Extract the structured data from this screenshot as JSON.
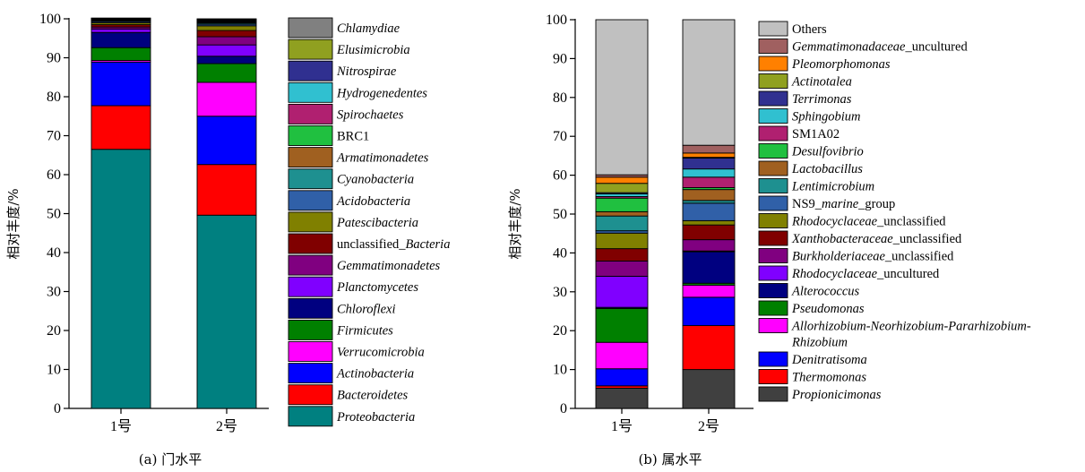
{
  "chart_data": [
    {
      "type": "bar",
      "stacked": true,
      "caption": "(a) 门水平",
      "ylabel": "相对丰度/%",
      "ylim": [
        0,
        100
      ],
      "yticks": [
        0,
        10,
        20,
        30,
        40,
        50,
        60,
        70,
        80,
        90,
        100
      ],
      "categories": [
        "1号",
        "2号"
      ],
      "legend_position": "right",
      "series": [
        {
          "name": "Proteobacteria",
          "color": "#008080",
          "values": [
            66.5,
            49.6
          ]
        },
        {
          "name": "Bacteroidetes",
          "color": "#FF0000",
          "values": [
            11.2,
            13.0
          ]
        },
        {
          "name": "Actinobacteria",
          "color": "#0000FF",
          "values": [
            11.2,
            12.4
          ]
        },
        {
          "name": "Verrucomicrobia",
          "color": "#FF00FF",
          "values": [
            0.4,
            8.7
          ]
        },
        {
          "name": "Firmicutes",
          "color": "#008000",
          "values": [
            3.3,
            4.8
          ]
        },
        {
          "name": "Chloroflexi",
          "color": "#000080",
          "values": [
            3.9,
            1.9
          ]
        },
        {
          "name": "Planctomycetes",
          "color": "#8000FF",
          "values": [
            0.9,
            2.9
          ]
        },
        {
          "name": "Gemmatimonadetes",
          "color": "#800080",
          "values": [
            0.5,
            2.1
          ]
        },
        {
          "name": "unclassified_Bacteria",
          "color": "#800000",
          "values": [
            0.6,
            1.6
          ]
        },
        {
          "name": "Patescibacteria",
          "color": "#808000",
          "values": [
            0.5,
            1.2
          ]
        },
        {
          "name": "Acidobacteria",
          "color": "#3060A8",
          "values": [
            0.3,
            0.4
          ]
        },
        {
          "name": "Cyanobacteria",
          "color": "#1E9090",
          "values": [
            0.2,
            0.3
          ]
        },
        {
          "name": "Armatimonadetes",
          "color": "#A06020",
          "values": [
            0.2,
            0.2
          ]
        },
        {
          "name": "BRC1",
          "color": "#20C040",
          "values": [
            0.2,
            0.2
          ]
        },
        {
          "name": "Spirochaetes",
          "color": "#B02070",
          "values": [
            0.1,
            0.2
          ]
        },
        {
          "name": "Hydrogenedentes",
          "color": "#30C0D0",
          "values": [
            0.1,
            0.1
          ]
        },
        {
          "name": "Nitrospirae",
          "color": "#303090",
          "values": [
            0.1,
            0.2
          ]
        },
        {
          "name": "Elusimicrobia",
          "color": "#90A020",
          "values": [
            0.0,
            0.1
          ]
        },
        {
          "name": "Chlamydiae",
          "color": "#808080",
          "values": [
            0.0,
            0.1
          ]
        }
      ],
      "legend": [
        {
          "text": "Chlamydiae",
          "italic": true
        },
        {
          "text": "Elusimicrobia",
          "italic": true
        },
        {
          "text": "Nitrospirae",
          "italic": true
        },
        {
          "text": "Hydrogenedentes",
          "italic": true
        },
        {
          "text": "Spirochaetes",
          "italic": true
        },
        {
          "text": "BRC1",
          "italic": false
        },
        {
          "text": "Armatimonadetes",
          "italic": true
        },
        {
          "text": "Cyanobacteria",
          "italic": true
        },
        {
          "text": "Acidobacteria",
          "italic": true
        },
        {
          "text": "Patescibacteria",
          "italic": true
        },
        {
          "text": "unclassified_Bacteria",
          "italic": false,
          "parts": [
            {
              "t": "unclassified_",
              "i": false
            },
            {
              "t": "Bacteria",
              "i": true
            }
          ]
        },
        {
          "text": "Gemmatimonadetes",
          "italic": true
        },
        {
          "text": "Planctomycetes",
          "italic": true
        },
        {
          "text": "Chloroflexi",
          "italic": true
        },
        {
          "text": "Firmicutes",
          "italic": true
        },
        {
          "text": "Verrucomicrobia",
          "italic": true
        },
        {
          "text": "Actinobacteria",
          "italic": true
        },
        {
          "text": "Bacteroidetes",
          "italic": true
        },
        {
          "text": "Proteobacteria",
          "italic": true
        }
      ]
    },
    {
      "type": "bar",
      "stacked": true,
      "caption": "(b) 属水平",
      "ylabel": "相对丰度/%",
      "ylim": [
        0,
        100
      ],
      "yticks": [
        0,
        10,
        20,
        30,
        40,
        50,
        60,
        70,
        80,
        90,
        100
      ],
      "categories": [
        "1号",
        "2号"
      ],
      "legend_position": "right",
      "series": [
        {
          "name": "Propionicimonas",
          "color": "#404040",
          "values": [
            5.2,
            10.0
          ]
        },
        {
          "name": "Thermomonas",
          "color": "#FF0000",
          "values": [
            0.6,
            11.3
          ]
        },
        {
          "name": "Denitratisoma",
          "color": "#0000FF",
          "values": [
            4.4,
            7.3
          ]
        },
        {
          "name": "Allorhizobium-Neorhizobium-Pararhizobium-Rhizobium",
          "color": "#FF00FF",
          "values": [
            6.8,
            3.1
          ]
        },
        {
          "name": "Pseudomonas",
          "color": "#008000",
          "values": [
            8.7,
            0.5
          ]
        },
        {
          "name": "Alterococcus",
          "color": "#000080",
          "values": [
            0.3,
            8.1
          ]
        },
        {
          "name": "Rhodocyclaceae_uncultured",
          "color": "#8000FF",
          "values": [
            8.0,
            0.2
          ]
        },
        {
          "name": "Burkholderiaceae_unclassified",
          "color": "#800080",
          "values": [
            3.9,
            2.9
          ]
        },
        {
          "name": "Xanthobacteraceae_unclassified",
          "color": "#800000",
          "values": [
            3.2,
            3.8
          ]
        },
        {
          "name": "Rhodocyclaceae_unclassified",
          "color": "#808000",
          "values": [
            4.0,
            1.1
          ]
        },
        {
          "name": "NS9_marine_group",
          "color": "#3060A8",
          "values": [
            0.6,
            4.5
          ]
        },
        {
          "name": "Lentimicrobium",
          "color": "#1E9090",
          "values": [
            3.8,
            0.7
          ]
        },
        {
          "name": "Lactobacillus",
          "color": "#A06020",
          "values": [
            1.1,
            2.8
          ]
        },
        {
          "name": "Desulfovibrio",
          "color": "#20C040",
          "values": [
            3.5,
            0.5
          ]
        },
        {
          "name": "SM1A02",
          "color": "#B02070",
          "values": [
            0.4,
            2.7
          ]
        },
        {
          "name": "Sphingobium",
          "color": "#30C0D0",
          "values": [
            0.7,
            2.1
          ]
        },
        {
          "name": "Terrimonas",
          "color": "#303090",
          "values": [
            0.3,
            2.8
          ]
        },
        {
          "name": "Actinotalea",
          "color": "#90A020",
          "values": [
            2.4,
            0.2
          ]
        },
        {
          "name": "Pleomorphomonas",
          "color": "#FF8000",
          "values": [
            1.6,
            1.1
          ]
        },
        {
          "name": "Gemmatimonadaceae_uncultured",
          "color": "#A06060",
          "values": [
            0.6,
            2.0
          ]
        },
        {
          "name": "Others",
          "color": "#C0C0C0",
          "values": [
            39.9,
            32.3
          ]
        }
      ],
      "legend": [
        {
          "text": "Others",
          "italic": false
        },
        {
          "text": "Gemmatimonadaceae_uncultured",
          "parts": [
            {
              "t": "Gemmatimonadaceae",
              "i": true
            },
            {
              "t": "_uncultured",
              "i": false
            }
          ]
        },
        {
          "text": "Pleomorphomonas",
          "italic": true
        },
        {
          "text": "Actinotalea",
          "italic": true
        },
        {
          "text": "Terrimonas",
          "italic": true
        },
        {
          "text": "Sphingobium",
          "italic": true
        },
        {
          "text": "SM1A02",
          "italic": false
        },
        {
          "text": "Desulfovibrio",
          "italic": true
        },
        {
          "text": "Lactobacillus",
          "italic": true
        },
        {
          "text": "Lentimicrobium",
          "italic": true
        },
        {
          "text": "NS9_marine_group",
          "parts": [
            {
              "t": "NS9_",
              "i": false
            },
            {
              "t": "marine",
              "i": true
            },
            {
              "t": "_group",
              "i": false
            }
          ]
        },
        {
          "text": "Rhodocyclaceae_unclassified",
          "parts": [
            {
              "t": "Rhodocyclaceae",
              "i": true
            },
            {
              "t": "_unclassified",
              "i": false
            }
          ]
        },
        {
          "text": "Xanthobacteraceae_unclassified",
          "parts": [
            {
              "t": "Xanthobacteraceae",
              "i": true
            },
            {
              "t": "_unclassified",
              "i": false
            }
          ]
        },
        {
          "text": "Burkholderiaceae_unclassified",
          "parts": [
            {
              "t": "Burkholderiaceae",
              "i": true
            },
            {
              "t": "_unclassified",
              "i": false
            }
          ]
        },
        {
          "text": "Rhodocyclaceae_uncultured",
          "parts": [
            {
              "t": "Rhodocyclaceae",
              "i": true
            },
            {
              "t": "_uncultured",
              "i": false
            }
          ]
        },
        {
          "text": "Alterococcus",
          "italic": true
        },
        {
          "text": "Pseudomonas",
          "italic": true
        },
        {
          "text": "Allorhizobium-Neorhizobium-Pararhizobium-Rhizobium",
          "italic": true,
          "lines": [
            "Allorhizobium-Neorhizobium-Pararhizobium-",
            "Rhizobium"
          ]
        },
        {
          "text": "Denitratisoma",
          "italic": true
        },
        {
          "text": "Thermomonas",
          "italic": true
        },
        {
          "text": "Propionicimonas",
          "italic": true
        }
      ]
    }
  ]
}
